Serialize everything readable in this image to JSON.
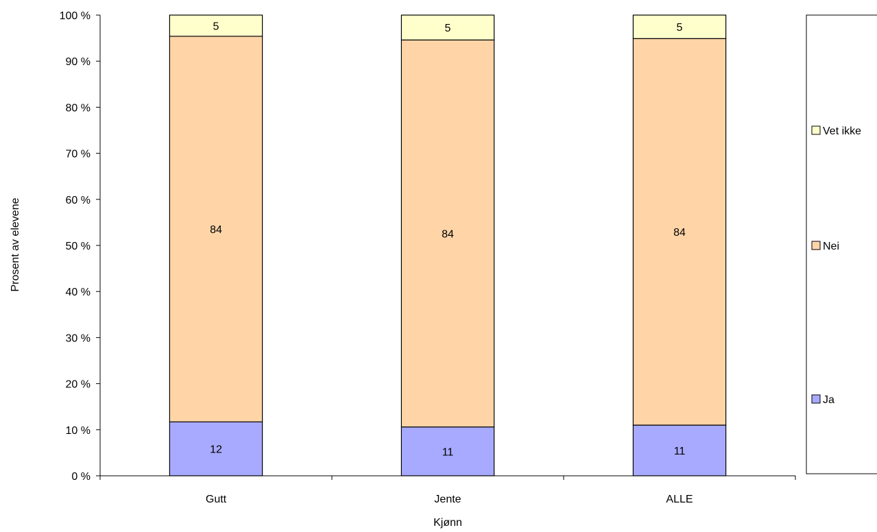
{
  "chart_data": {
    "type": "bar",
    "stacked": true,
    "normalized_percent": true,
    "categories": [
      "Gutt",
      "Jente",
      "ALLE"
    ],
    "series": [
      {
        "name": "Ja",
        "values": [
          11.7,
          10.6,
          11.0
        ],
        "labels": [
          "12",
          "11",
          "11"
        ],
        "color": "#A8AAFF"
      },
      {
        "name": "Nei",
        "values": [
          83.7,
          84.0,
          83.9
        ],
        "labels": [
          "84",
          "84",
          "84"
        ],
        "color": "#FFD5A8"
      },
      {
        "name": "Vet ikke",
        "values": [
          4.6,
          5.4,
          5.1
        ],
        "labels": [
          "5",
          "5",
          "5"
        ],
        "color": "#FFFFCC"
      }
    ],
    "xlabel": "Kjønn",
    "ylabel": "Prosent av elevene",
    "ylim": [
      0,
      100
    ],
    "yticks": [
      "0 %",
      "10 %",
      "20 %",
      "30 %",
      "40 %",
      "50 %",
      "60 %",
      "70 %",
      "80 %",
      "90 %",
      "100 %"
    ],
    "grid": false,
    "legend_position": "right",
    "legend_order": [
      "Vet ikke",
      "Nei",
      "Ja"
    ]
  }
}
